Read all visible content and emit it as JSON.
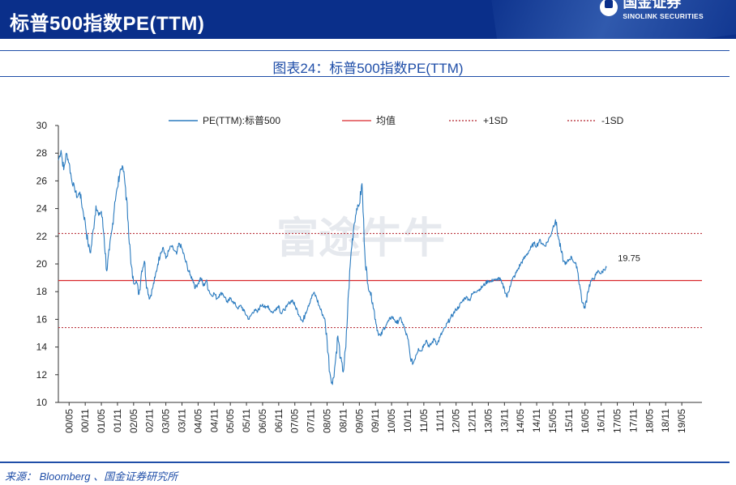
{
  "header": {
    "title": "标普500指数PE(TTM)"
  },
  "logo": {
    "cn": "国金证券",
    "en": "SINOLINK SECURITIES"
  },
  "chart_title": "图表24：标普500指数PE(TTM)",
  "watermark": "富途牛牛",
  "source": "来源： Bloomberg 、国金证券研究所",
  "colors": {
    "header_bg": "#0a2f8a",
    "title_blue": "#1f4ea8",
    "series": "#2b7bbf",
    "mean": "#d9262b",
    "sd": "#b2202a"
  },
  "chart_data": {
    "type": "line",
    "title": "",
    "xlabel": "",
    "ylabel": "",
    "ylim": [
      10,
      30
    ],
    "yticks": [
      10,
      12,
      14,
      16,
      18,
      20,
      22,
      24,
      26,
      28,
      30
    ],
    "xlim": [
      0,
      239.5
    ],
    "x_unit": "months since 2000-01",
    "xtick_labels": [
      "00/05",
      "00/11",
      "01/05",
      "01/11",
      "02/05",
      "02/11",
      "03/05",
      "03/11",
      "04/05",
      "04/11",
      "05/05",
      "05/11",
      "06/05",
      "06/11",
      "07/05",
      "07/11",
      "08/05",
      "08/11",
      "09/05",
      "09/11",
      "10/05",
      "10/11",
      "11/05",
      "11/11",
      "12/05",
      "12/11",
      "13/05",
      "13/11",
      "14/05",
      "14/11",
      "15/05",
      "15/11",
      "16/05",
      "16/11",
      "17/05",
      "17/11",
      "18/05",
      "18/11",
      "19/05"
    ],
    "grid": false,
    "legend": {
      "position": "top",
      "entries": [
        "PE(TTM):标普500",
        "均值",
        "+1SD",
        "-1SD"
      ]
    },
    "series": [
      {
        "name": "PE(TTM):标普500",
        "style": "solid",
        "points": [
          [
            0,
            27.5
          ],
          [
            1,
            28.2
          ],
          [
            2,
            26.8
          ],
          [
            3,
            28.0
          ],
          [
            4,
            27.3
          ],
          [
            5,
            26.0
          ],
          [
            6,
            25.5
          ],
          [
            7,
            24.8
          ],
          [
            8,
            25.2
          ],
          [
            9,
            24.0
          ],
          [
            10,
            23.0
          ],
          [
            11,
            21.5
          ],
          [
            12,
            20.8
          ],
          [
            13,
            22.5
          ],
          [
            14,
            24.2
          ],
          [
            15,
            23.5
          ],
          [
            16,
            23.8
          ],
          [
            17,
            22.0
          ],
          [
            18,
            19.5
          ],
          [
            19,
            21.0
          ],
          [
            20,
            22.5
          ],
          [
            21,
            24.5
          ],
          [
            22,
            25.5
          ],
          [
            23,
            26.8
          ],
          [
            24,
            27.0
          ],
          [
            25,
            25.5
          ],
          [
            26,
            23.0
          ],
          [
            27,
            20.0
          ],
          [
            28,
            18.6
          ],
          [
            29,
            18.8
          ],
          [
            30,
            17.8
          ],
          [
            31,
            19.5
          ],
          [
            32,
            20.2
          ],
          [
            33,
            18.3
          ],
          [
            34,
            17.5
          ],
          [
            35,
            18.2
          ],
          [
            36,
            19.0
          ],
          [
            37,
            20.0
          ],
          [
            38,
            20.8
          ],
          [
            39,
            21.2
          ],
          [
            40,
            20.4
          ],
          [
            41,
            20.9
          ],
          [
            42,
            21.3
          ],
          [
            43,
            21.0
          ],
          [
            44,
            20.7
          ],
          [
            45,
            21.5
          ],
          [
            46,
            21.1
          ],
          [
            47,
            20.4
          ],
          [
            48,
            19.8
          ],
          [
            49,
            19.2
          ],
          [
            50,
            18.9
          ],
          [
            51,
            18.3
          ],
          [
            52,
            18.6
          ],
          [
            53,
            19.0
          ],
          [
            54,
            18.4
          ],
          [
            55,
            18.8
          ],
          [
            56,
            18.1
          ],
          [
            57,
            17.7
          ],
          [
            58,
            17.9
          ],
          [
            59,
            17.5
          ],
          [
            60,
            17.8
          ],
          [
            61,
            17.9
          ],
          [
            62,
            17.6
          ],
          [
            63,
            17.2
          ],
          [
            64,
            17.5
          ],
          [
            65,
            17.3
          ],
          [
            66,
            17.0
          ],
          [
            67,
            16.8
          ],
          [
            68,
            17.0
          ],
          [
            69,
            16.6
          ],
          [
            70,
            16.3
          ],
          [
            71,
            16.0
          ],
          [
            72,
            16.4
          ],
          [
            73,
            16.7
          ],
          [
            74,
            16.5
          ],
          [
            75,
            16.9
          ],
          [
            76,
            17.1
          ],
          [
            77,
            16.8
          ],
          [
            78,
            17.0
          ],
          [
            79,
            16.6
          ],
          [
            80,
            16.5
          ],
          [
            81,
            16.8
          ],
          [
            82,
            17.0
          ],
          [
            83,
            16.4
          ],
          [
            84,
            16.7
          ],
          [
            85,
            16.9
          ],
          [
            86,
            17.2
          ],
          [
            87,
            17.4
          ],
          [
            88,
            17.0
          ],
          [
            89,
            16.6
          ],
          [
            90,
            16.2
          ],
          [
            91,
            15.8
          ],
          [
            92,
            16.5
          ],
          [
            93,
            17.0
          ],
          [
            94,
            17.5
          ],
          [
            95,
            17.9
          ],
          [
            96,
            17.6
          ],
          [
            97,
            17.0
          ],
          [
            98,
            16.5
          ],
          [
            99,
            16.1
          ],
          [
            100,
            14.5
          ],
          [
            101,
            12.2
          ],
          [
            102,
            11.3
          ],
          [
            103,
            12.8
          ],
          [
            104,
            14.8
          ],
          [
            105,
            13.2
          ],
          [
            106,
            12.2
          ],
          [
            107,
            14.0
          ],
          [
            108,
            18.0
          ],
          [
            109,
            21.0
          ],
          [
            110,
            22.8
          ],
          [
            111,
            24.0
          ],
          [
            112,
            24.3
          ],
          [
            113,
            25.8
          ],
          [
            114,
            21.0
          ],
          [
            115,
            18.6
          ],
          [
            116,
            18.0
          ],
          [
            117,
            17.2
          ],
          [
            118,
            16.0
          ],
          [
            119,
            15.0
          ],
          [
            120,
            14.8
          ],
          [
            121,
            15.3
          ],
          [
            122,
            15.6
          ],
          [
            123,
            15.9
          ],
          [
            124,
            16.2
          ],
          [
            125,
            16.0
          ],
          [
            126,
            15.7
          ],
          [
            127,
            16.1
          ],
          [
            128,
            15.8
          ],
          [
            129,
            15.2
          ],
          [
            130,
            14.6
          ],
          [
            131,
            13.2
          ],
          [
            132,
            12.8
          ],
          [
            133,
            13.4
          ],
          [
            134,
            13.9
          ],
          [
            135,
            13.7
          ],
          [
            136,
            14.2
          ],
          [
            137,
            14.5
          ],
          [
            138,
            14.0
          ],
          [
            139,
            14.3
          ],
          [
            140,
            14.6
          ],
          [
            141,
            14.2
          ],
          [
            142,
            14.7
          ],
          [
            143,
            15.1
          ],
          [
            144,
            15.4
          ],
          [
            145,
            15.8
          ],
          [
            146,
            16.1
          ],
          [
            147,
            16.4
          ],
          [
            148,
            16.7
          ],
          [
            149,
            16.9
          ],
          [
            150,
            17.2
          ],
          [
            151,
            17.5
          ],
          [
            152,
            17.6
          ],
          [
            153,
            17.4
          ],
          [
            154,
            17.8
          ],
          [
            155,
            18.0
          ],
          [
            156,
            18.1
          ],
          [
            157,
            18.2
          ],
          [
            158,
            18.4
          ],
          [
            159,
            18.6
          ],
          [
            160,
            18.8
          ],
          [
            161,
            18.7
          ],
          [
            162,
            18.9
          ],
          [
            163,
            18.8
          ],
          [
            164,
            19.0
          ],
          [
            165,
            18.6
          ],
          [
            166,
            18.2
          ],
          [
            167,
            17.6
          ],
          [
            168,
            18.4
          ],
          [
            169,
            18.9
          ],
          [
            170,
            19.2
          ],
          [
            171,
            19.6
          ],
          [
            172,
            20.0
          ],
          [
            173,
            20.3
          ],
          [
            174,
            20.6
          ],
          [
            175,
            20.9
          ],
          [
            176,
            21.2
          ],
          [
            177,
            21.5
          ],
          [
            178,
            21.3
          ],
          [
            179,
            21.7
          ],
          [
            180,
            21.5
          ],
          [
            181,
            21.3
          ],
          [
            182,
            21.6
          ],
          [
            183,
            22.0
          ],
          [
            184,
            22.6
          ],
          [
            185,
            23.2
          ],
          [
            186,
            22.0
          ],
          [
            187,
            21.0
          ],
          [
            188,
            20.2
          ],
          [
            189,
            20.0
          ],
          [
            190,
            20.3
          ],
          [
            191,
            20.5
          ],
          [
            192,
            20.1
          ],
          [
            193,
            19.8
          ],
          [
            194,
            18.5
          ],
          [
            195,
            17.2
          ],
          [
            196,
            16.8
          ],
          [
            197,
            18.0
          ],
          [
            198,
            18.7
          ],
          [
            199,
            18.9
          ],
          [
            200,
            19.2
          ],
          [
            201,
            19.5
          ],
          [
            202,
            19.3
          ],
          [
            203,
            19.6
          ],
          [
            204,
            19.75
          ]
        ]
      },
      {
        "name": "均值",
        "style": "solid",
        "value": 18.8
      },
      {
        "name": "+1SD",
        "style": "dotted",
        "value": 22.2
      },
      {
        "name": "-1SD",
        "style": "dotted",
        "value": 15.4
      }
    ],
    "annotations": [
      {
        "text": "19.75",
        "x": 204,
        "y": 19.75
      }
    ]
  }
}
